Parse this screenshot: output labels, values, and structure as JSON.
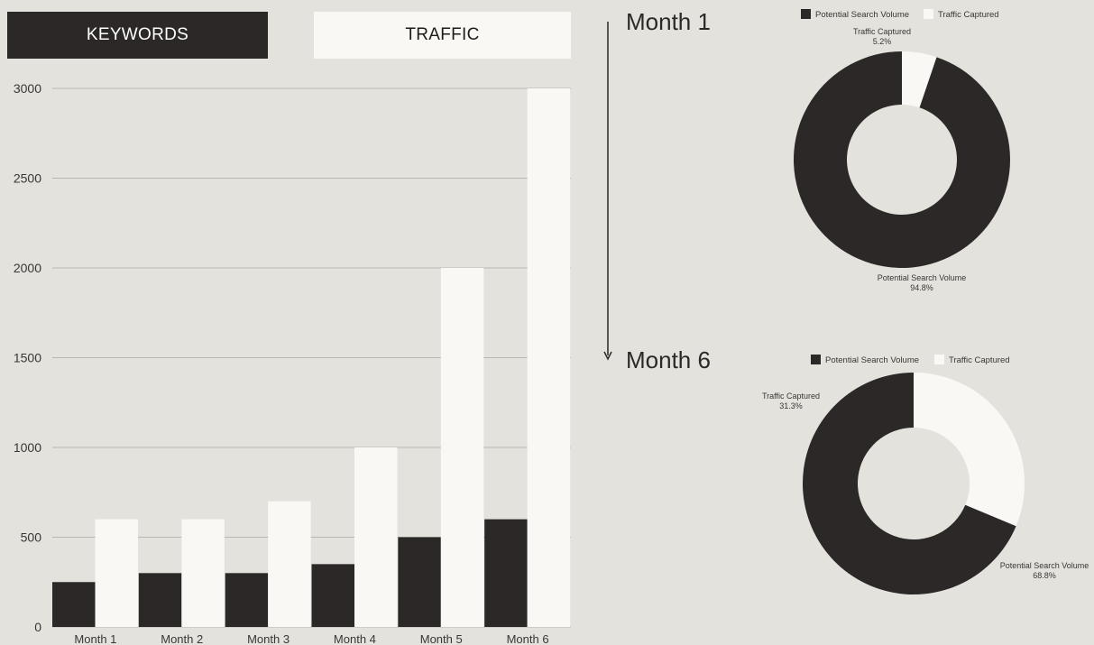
{
  "tabs": {
    "keywords_label": "KEYWORDS",
    "traffic_label": "TRAFFIC"
  },
  "timeline": {
    "start_label": "Month 1",
    "end_label": "Month 6"
  },
  "colors": {
    "background": "#e4e2dd",
    "dark": "#2c2827",
    "light": "#faf8f4",
    "grid": "#b9b6b1"
  },
  "chart_data": [
    {
      "type": "bar",
      "categories": [
        "Month 1",
        "Month 2",
        "Month 3",
        "Month 4",
        "Month 5",
        "Month 6"
      ],
      "series": [
        {
          "color": "#2c2827",
          "values": [
            250,
            300,
            300,
            350,
            500,
            600
          ]
        },
        {
          "color": "#faf8f4",
          "values": [
            600,
            600,
            700,
            1000,
            2000,
            3000
          ]
        }
      ],
      "yticks": [
        0,
        500,
        1000,
        1500,
        2000,
        2500,
        3000
      ],
      "ylim": [
        0,
        3000
      ],
      "grid": true
    },
    {
      "type": "pie",
      "legend": [
        "Potential Search Volume",
        "Traffic Captured"
      ],
      "legend_position": "top",
      "slices": [
        {
          "label": "Potential Search Volume",
          "pct_label": "94.8%",
          "value": 94.8,
          "color": "#2c2827"
        },
        {
          "label": "Traffic Captured",
          "pct_label": "5.2%",
          "value": 5.2,
          "color": "#faf8f4"
        }
      ]
    },
    {
      "type": "pie",
      "legend": [
        "Potential Search Volume",
        "Traffic Captured"
      ],
      "legend_position": "top",
      "slices": [
        {
          "label": "Potential Search Volume",
          "pct_label": "68.8%",
          "value": 68.8,
          "color": "#2c2827"
        },
        {
          "label": "Traffic Captured",
          "pct_label": "31.3%",
          "value": 31.3,
          "color": "#faf8f4"
        }
      ]
    }
  ]
}
